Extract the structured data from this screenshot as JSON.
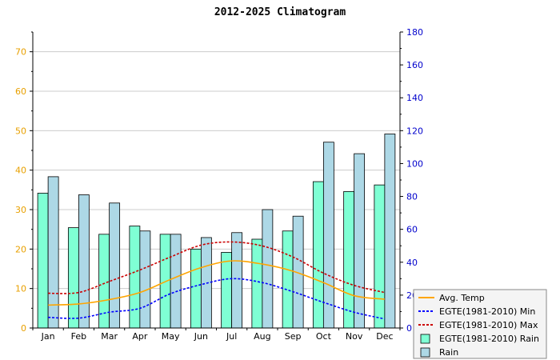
{
  "chart_data": {
    "type": "bar",
    "title": "2012-2025 Climatogram",
    "categories": [
      "Jan",
      "Feb",
      "Mar",
      "Apr",
      "May",
      "Jun",
      "Jul",
      "Aug",
      "Sep",
      "Oct",
      "Nov",
      "Dec"
    ],
    "y_left": {
      "ylim": [
        0,
        75
      ],
      "ticks": [
        0,
        10,
        20,
        30,
        40,
        50,
        60,
        70
      ],
      "color": "#e8a000"
    },
    "y_right": {
      "ylim": [
        0,
        180
      ],
      "ticks": [
        0,
        20,
        40,
        60,
        80,
        100,
        120,
        140,
        160,
        180
      ],
      "color": "#0000cc"
    },
    "grid": true,
    "legend_position": "bottom-right",
    "series": [
      {
        "name": "EGTE(1981-2010) Rain",
        "kind": "bar",
        "axis": "right",
        "color": "#7fffd4",
        "values": [
          82,
          61,
          57,
          62,
          57,
          48,
          46,
          54,
          59,
          89,
          83,
          87
        ]
      },
      {
        "name": "Rain",
        "kind": "bar",
        "axis": "right",
        "color": "#add8e6",
        "values": [
          92,
          81,
          76,
          59,
          57,
          55,
          58,
          72,
          68,
          113,
          106,
          118
        ]
      },
      {
        "name": "Avg. Temp",
        "kind": "line",
        "style": "solid",
        "axis": "left",
        "color": "#ffa500",
        "values": [
          5.8,
          6.1,
          7.2,
          9.0,
          12.3,
          15.3,
          17.0,
          16.2,
          14.4,
          11.5,
          8.2,
          7.3
        ]
      },
      {
        "name": "EGTE(1981-2010) Min",
        "kind": "line",
        "style": "dashed",
        "axis": "left",
        "color": "#0000ff",
        "values": [
          2.7,
          2.5,
          4.0,
          5.0,
          8.7,
          11.0,
          12.5,
          11.5,
          9.2,
          6.5,
          4.0,
          2.3
        ]
      },
      {
        "name": "EGTE(1981-2010) Max",
        "kind": "line",
        "style": "dashed",
        "axis": "left",
        "color": "#cc0000",
        "values": [
          8.8,
          9.0,
          11.8,
          14.7,
          18.0,
          21.0,
          21.8,
          20.8,
          18.0,
          13.9,
          10.8,
          9.0
        ]
      }
    ]
  }
}
